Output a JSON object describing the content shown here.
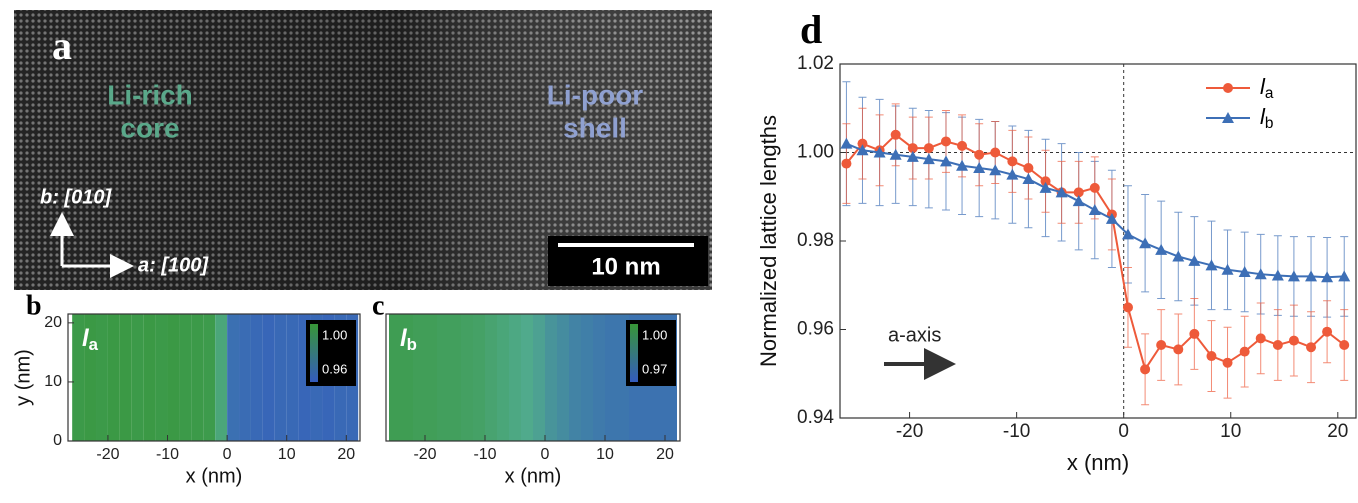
{
  "image": {
    "label": "a",
    "core_text": [
      "Li-rich",
      "core"
    ],
    "shell_text": [
      "Li-poor",
      "shell"
    ],
    "axis_b": "b: [010]",
    "axis_a": "a: [100]",
    "scale_bar": "10 nm"
  },
  "chart_data": [
    {
      "type": "heatmap",
      "label": "b",
      "inset": "la",
      "x_label": "x (nm)",
      "y_label": "y (nm)",
      "x": [
        -25,
        -23,
        -21,
        -19,
        -17,
        -15,
        -13,
        -11,
        -9,
        -7,
        -5,
        -3,
        -1,
        1,
        3,
        5,
        7,
        9,
        11,
        13,
        15,
        17,
        19,
        21
      ],
      "values": [
        0.999,
        1.0,
        0.999,
        1.0,
        1.0,
        0.999,
        1.0,
        0.999,
        1.0,
        0.999,
        0.999,
        0.998,
        0.985,
        0.962,
        0.961,
        0.96,
        0.959,
        0.96,
        0.96,
        0.959,
        0.96,
        0.959,
        0.96,
        0.96
      ],
      "xlim": [
        -26.7,
        22.3
      ],
      "ylim": [
        0,
        21.5
      ],
      "xticks": [
        -20,
        -10,
        0,
        10,
        20
      ],
      "yticks": [
        0,
        10,
        20
      ],
      "colorbar_ticks": [
        {
          "value": 1,
          "label": "1.00"
        },
        {
          "value": 0.96,
          "label": "0.96"
        }
      ]
    },
    {
      "type": "heatmap",
      "label": "c",
      "inset": "lb",
      "x_label": "x (nm)",
      "x": [
        -25,
        -23,
        -21,
        -19,
        -17,
        -15,
        -13,
        -11,
        -9,
        -7,
        -5,
        -3,
        -1,
        1,
        3,
        5,
        7,
        9,
        11,
        13,
        15,
        17,
        19,
        21
      ],
      "values": [
        0.997,
        0.997,
        0.996,
        0.996,
        0.995,
        0.995,
        0.994,
        0.993,
        0.991,
        0.989,
        0.987,
        0.985,
        0.983,
        0.98,
        0.978,
        0.976,
        0.975,
        0.974,
        0.973,
        0.973,
        0.972,
        0.972,
        0.972,
        0.972
      ],
      "xlim": [
        -26.5,
        22.5
      ],
      "ylim": [
        0,
        21.5
      ],
      "xticks": [
        -20,
        -10,
        0,
        10,
        20
      ],
      "colorbar_ticks": [
        {
          "value": 1,
          "label": "1.00"
        },
        {
          "value": 0.97,
          "label": "0.97"
        }
      ]
    },
    {
      "type": "line",
      "label": "d",
      "x_label": "x (nm)",
      "y_label": "Normalized lattice lengths",
      "annotation": "a-axis",
      "x": [
        -25.9,
        -24.4,
        -22.8,
        -21.3,
        -19.7,
        -18.2,
        -16.6,
        -15.1,
        -13.5,
        -12.0,
        -10.4,
        -8.9,
        -7.3,
        -5.8,
        -4.2,
        -2.7,
        -1.1,
        0.4,
        2.0,
        3.5,
        5.1,
        6.6,
        8.2,
        9.7,
        11.3,
        12.8,
        14.4,
        15.9,
        17.5,
        19.0,
        20.6
      ],
      "series": [
        {
          "name": "la",
          "color": "#ee5a3a",
          "values": [
            0.9975,
            1.002,
            1.0005,
            1.004,
            1.001,
            1.001,
            1.0025,
            1.0015,
            0.9995,
            1.0,
            0.998,
            0.9965,
            0.9935,
            0.991,
            0.991,
            0.992,
            0.986,
            0.965,
            0.951,
            0.9565,
            0.9555,
            0.959,
            0.954,
            0.9525,
            0.955,
            0.958,
            0.9565,
            0.9575,
            0.956,
            0.9595,
            0.9565
          ],
          "errors": [
            0.009,
            0.008,
            0.008,
            0.007,
            0.007,
            0.007,
            0.007,
            0.007,
            0.007,
            0.007,
            0.007,
            0.007,
            0.007,
            0.007,
            0.007,
            0.007,
            0.008,
            0.009,
            0.008,
            0.008,
            0.008,
            0.008,
            0.008,
            0.008,
            0.008,
            0.008,
            0.008,
            0.008,
            0.008,
            0.007,
            0.008
          ]
        },
        {
          "name": "lb",
          "color": "#3d6fb6",
          "values": [
            1.002,
            1.0005,
            1.0,
            0.9995,
            0.999,
            0.9985,
            0.998,
            0.997,
            0.9965,
            0.996,
            0.995,
            0.994,
            0.992,
            0.991,
            0.989,
            0.987,
            0.985,
            0.9815,
            0.9795,
            0.978,
            0.9765,
            0.9755,
            0.9745,
            0.9735,
            0.973,
            0.9725,
            0.9722,
            0.972,
            0.972,
            0.9718,
            0.972
          ],
          "errors": [
            0.014,
            0.012,
            0.012,
            0.011,
            0.011,
            0.011,
            0.011,
            0.011,
            0.011,
            0.011,
            0.011,
            0.011,
            0.011,
            0.011,
            0.011,
            0.011,
            0.011,
            0.011,
            0.011,
            0.011,
            0.01,
            0.01,
            0.01,
            0.009,
            0.009,
            0.009,
            0.009,
            0.009,
            0.009,
            0.009,
            0.009
          ]
        }
      ],
      "xlim": [
        -26.5,
        21.7
      ],
      "ylim": [
        0.94,
        1.02
      ],
      "xticks": [
        -20,
        -10,
        0,
        10,
        20
      ],
      "yticks": [
        0.94,
        0.96,
        0.98,
        {
          "value": 1,
          "label": "1.00"
        },
        1.02
      ],
      "ref_x": 0,
      "ref_y": 1,
      "legend": "upper right"
    }
  ]
}
